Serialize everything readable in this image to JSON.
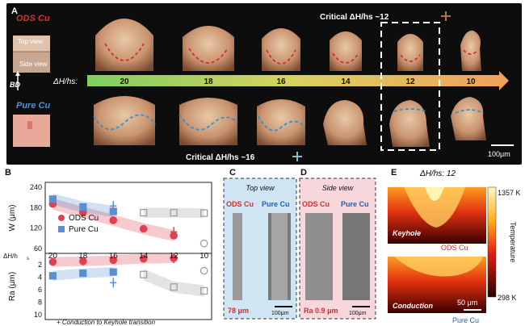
{
  "panels": {
    "A": {
      "letter": "A",
      "ods_label": "ODS Cu",
      "pure_label": "Pure Cu",
      "top_view": "Top view",
      "side_view": "Side view",
      "bd": "BD",
      "dh_label": "ΔH/hs:",
      "dh_values": [
        "20",
        "18",
        "16",
        "14",
        "12",
        "10"
      ],
      "critical_ods": "Critical ΔH/hs ~12",
      "critical_pure": "Critical ΔH/hs ~16",
      "scale": "100μm"
    },
    "B": {
      "letter": "B",
      "conduction_note": "+ Conduction to Keyhole transition",
      "dh_axis_label": "ΔH/h",
      "dh_axis_sub": "s"
    },
    "C": {
      "letter": "C",
      "view": "Top view",
      "ods": "ODS Cu",
      "pure": "Pure Cu",
      "value": "78 μm",
      "scale": "100μm"
    },
    "D": {
      "letter": "D",
      "view": "Side view",
      "ods": "ODS Cu",
      "pure": "Pure Cu",
      "value": "Ra 0.9 μm",
      "scale": "100μm"
    },
    "E": {
      "letter": "E",
      "title": "ΔH/hs: 12",
      "tmax": "1357 K",
      "tmin": "298 K",
      "temp_label": "Temperature",
      "keyhole": "Keyhole",
      "conduction": "Conduction",
      "ods": "ODS Cu",
      "pure": "Pure Cu",
      "scale": "50 μm"
    }
  },
  "chart_data": [
    {
      "type": "scatter",
      "name_top": "W vs ΔH/hs",
      "ylabel": "W (μm)",
      "ylim": [
        60,
        240
      ],
      "yticks": [
        60,
        120,
        180,
        240
      ],
      "xlim": [
        20.5,
        9.5
      ],
      "xticks": [
        20,
        18,
        16,
        14,
        12,
        10
      ],
      "legend": [
        "ODS Cu",
        "Pure Cu"
      ],
      "legend_position": "middle",
      "series": [
        {
          "name": "ODS Cu",
          "x": [
            20,
            18,
            16,
            14,
            12,
            10
          ],
          "y": [
            191,
            166,
            143,
            118,
            98,
            75
          ],
          "filled": [
            true,
            true,
            true,
            true,
            true,
            false
          ]
        },
        {
          "name": "Pure Cu",
          "x": [
            20,
            18,
            16,
            14,
            12,
            10
          ],
          "y": [
            205,
            182,
            169,
            165,
            165,
            164
          ],
          "filled": [
            true,
            true,
            true,
            false,
            false,
            false
          ]
        }
      ],
      "transition_markers": [
        {
          "series": "ODS Cu",
          "x": 12,
          "y": 109
        },
        {
          "series": "Pure Cu",
          "x": 16,
          "y": 185
        }
      ]
    },
    {
      "type": "scatter",
      "ylabel": "Ra (μm)",
      "ylim": [
        10,
        1
      ],
      "yticks": [
        2,
        4,
        6,
        8,
        10
      ],
      "xlim": [
        20.5,
        9.5
      ],
      "series": [
        {
          "name": "ODS Cu",
          "x": [
            20,
            18,
            16,
            14,
            12,
            10
          ],
          "y": [
            1.6,
            1.5,
            1.3,
            1.1,
            1.0,
            3.0
          ],
          "filled": [
            true,
            true,
            true,
            true,
            true,
            false
          ]
        },
        {
          "name": "Pure Cu",
          "x": [
            20,
            18,
            16,
            14,
            12,
            10
          ],
          "y": [
            3.8,
            3.4,
            3.2,
            3.6,
            5.6,
            6.2
          ],
          "filled": [
            true,
            true,
            true,
            false,
            false,
            false
          ]
        }
      ],
      "transition_markers": [
        {
          "series": "ODS Cu",
          "x": 12,
          "y": 1.0
        },
        {
          "series": "Pure Cu",
          "x": 16,
          "y": 4.9
        }
      ]
    }
  ],
  "colors": {
    "ods": "#e04050",
    "pure": "#5b8fcf",
    "gray": "#9a9a9a",
    "dash_red": "#d03030",
    "dash_blue": "#2f8fd0",
    "panelC_bg": "#cfe5f3",
    "panelD_bg": "#f7d6dc",
    "scale_text": "#1a4fa0"
  }
}
